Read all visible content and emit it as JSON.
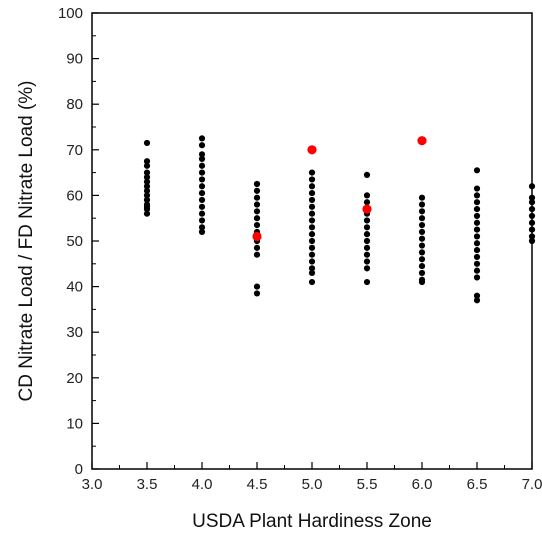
{
  "chart_data": {
    "type": "scatter",
    "title": "",
    "xlabel": "USDA Plant Hardiness Zone",
    "ylabel": "CD Nitrate Load / FD Nitrate Load (%)",
    "xlim": [
      3.0,
      7.0
    ],
    "ylim": [
      0,
      100
    ],
    "xticks": [
      "3.0",
      "3.5",
      "4.0",
      "4.5",
      "5.0",
      "5.5",
      "6.0",
      "6.5",
      "7.0"
    ],
    "yticks": [
      "0",
      "10",
      "20",
      "30",
      "40",
      "50",
      "60",
      "70",
      "80",
      "90",
      "100"
    ],
    "grid": false,
    "legend": "none",
    "series": [
      {
        "color": "#000000",
        "points": [
          {
            "x": 3.5,
            "y": 71.5
          },
          {
            "x": 3.5,
            "y": 67.5
          },
          {
            "x": 3.5,
            "y": 66.5
          },
          {
            "x": 3.5,
            "y": 65.0
          },
          {
            "x": 3.5,
            "y": 64.0
          },
          {
            "x": 3.5,
            "y": 63.0
          },
          {
            "x": 3.5,
            "y": 62.0
          },
          {
            "x": 3.5,
            "y": 61.0
          },
          {
            "x": 3.5,
            "y": 60.0
          },
          {
            "x": 3.5,
            "y": 59.0
          },
          {
            "x": 3.5,
            "y": 58.0
          },
          {
            "x": 3.5,
            "y": 57.5
          },
          {
            "x": 3.5,
            "y": 57.0
          },
          {
            "x": 3.5,
            "y": 56.0
          },
          {
            "x": 4.0,
            "y": 72.5
          },
          {
            "x": 4.0,
            "y": 71.0
          },
          {
            "x": 4.0,
            "y": 69.0
          },
          {
            "x": 4.0,
            "y": 68.0
          },
          {
            "x": 4.0,
            "y": 66.5
          },
          {
            "x": 4.0,
            "y": 65.0
          },
          {
            "x": 4.0,
            "y": 63.5
          },
          {
            "x": 4.0,
            "y": 62.0
          },
          {
            "x": 4.0,
            "y": 60.5
          },
          {
            "x": 4.0,
            "y": 59.0
          },
          {
            "x": 4.0,
            "y": 57.5
          },
          {
            "x": 4.0,
            "y": 56.0
          },
          {
            "x": 4.0,
            "y": 54.5
          },
          {
            "x": 4.0,
            "y": 53.0
          },
          {
            "x": 4.0,
            "y": 52.0
          },
          {
            "x": 4.5,
            "y": 62.5
          },
          {
            "x": 4.5,
            "y": 61.0
          },
          {
            "x": 4.5,
            "y": 59.5
          },
          {
            "x": 4.5,
            "y": 58.0
          },
          {
            "x": 4.5,
            "y": 56.5
          },
          {
            "x": 4.5,
            "y": 55.0
          },
          {
            "x": 4.5,
            "y": 53.5
          },
          {
            "x": 4.5,
            "y": 52.0
          },
          {
            "x": 4.5,
            "y": 50.0
          },
          {
            "x": 4.5,
            "y": 48.5
          },
          {
            "x": 4.5,
            "y": 47.0
          },
          {
            "x": 4.5,
            "y": 40.0
          },
          {
            "x": 4.5,
            "y": 38.5
          },
          {
            "x": 5.0,
            "y": 65.0
          },
          {
            "x": 5.0,
            "y": 63.5
          },
          {
            "x": 5.0,
            "y": 62.0
          },
          {
            "x": 5.0,
            "y": 60.5
          },
          {
            "x": 5.0,
            "y": 59.0
          },
          {
            "x": 5.0,
            "y": 57.5
          },
          {
            "x": 5.0,
            "y": 56.0
          },
          {
            "x": 5.0,
            "y": 54.5
          },
          {
            "x": 5.0,
            "y": 53.0
          },
          {
            "x": 5.0,
            "y": 51.5
          },
          {
            "x": 5.0,
            "y": 50.0
          },
          {
            "x": 5.0,
            "y": 48.5
          },
          {
            "x": 5.0,
            "y": 47.0
          },
          {
            "x": 5.0,
            "y": 45.5
          },
          {
            "x": 5.0,
            "y": 44.0
          },
          {
            "x": 5.0,
            "y": 43.0
          },
          {
            "x": 5.0,
            "y": 41.0
          },
          {
            "x": 5.5,
            "y": 64.5
          },
          {
            "x": 5.5,
            "y": 60.0
          },
          {
            "x": 5.5,
            "y": 58.5
          },
          {
            "x": 5.5,
            "y": 56.0
          },
          {
            "x": 5.5,
            "y": 54.5
          },
          {
            "x": 5.5,
            "y": 53.0
          },
          {
            "x": 5.5,
            "y": 51.5
          },
          {
            "x": 5.5,
            "y": 50.0
          },
          {
            "x": 5.5,
            "y": 48.5
          },
          {
            "x": 5.5,
            "y": 47.0
          },
          {
            "x": 5.5,
            "y": 45.5
          },
          {
            "x": 5.5,
            "y": 44.0
          },
          {
            "x": 5.5,
            "y": 41.0
          },
          {
            "x": 6.0,
            "y": 59.5
          },
          {
            "x": 6.0,
            "y": 58.0
          },
          {
            "x": 6.0,
            "y": 56.5
          },
          {
            "x": 6.0,
            "y": 55.0
          },
          {
            "x": 6.0,
            "y": 53.5
          },
          {
            "x": 6.0,
            "y": 52.0
          },
          {
            "x": 6.0,
            "y": 50.5
          },
          {
            "x": 6.0,
            "y": 49.0
          },
          {
            "x": 6.0,
            "y": 47.5
          },
          {
            "x": 6.0,
            "y": 46.0
          },
          {
            "x": 6.0,
            "y": 44.5
          },
          {
            "x": 6.0,
            "y": 43.0
          },
          {
            "x": 6.0,
            "y": 41.5
          },
          {
            "x": 6.0,
            "y": 41.0
          },
          {
            "x": 6.5,
            "y": 65.5
          },
          {
            "x": 6.5,
            "y": 61.5
          },
          {
            "x": 6.5,
            "y": 60.0
          },
          {
            "x": 6.5,
            "y": 58.5
          },
          {
            "x": 6.5,
            "y": 57.0
          },
          {
            "x": 6.5,
            "y": 55.5
          },
          {
            "x": 6.5,
            "y": 54.0
          },
          {
            "x": 6.5,
            "y": 52.5
          },
          {
            "x": 6.5,
            "y": 51.0
          },
          {
            "x": 6.5,
            "y": 49.5
          },
          {
            "x": 6.5,
            "y": 48.0
          },
          {
            "x": 6.5,
            "y": 46.5
          },
          {
            "x": 6.5,
            "y": 45.0
          },
          {
            "x": 6.5,
            "y": 43.5
          },
          {
            "x": 6.5,
            "y": 42.0
          },
          {
            "x": 6.5,
            "y": 38.0
          },
          {
            "x": 6.5,
            "y": 37.0
          },
          {
            "x": 7.0,
            "y": 62.0
          },
          {
            "x": 7.0,
            "y": 59.5
          },
          {
            "x": 7.0,
            "y": 58.5
          },
          {
            "x": 7.0,
            "y": 57.0
          },
          {
            "x": 7.0,
            "y": 55.5
          },
          {
            "x": 7.0,
            "y": 54.0
          },
          {
            "x": 7.0,
            "y": 52.5
          },
          {
            "x": 7.0,
            "y": 51.0
          },
          {
            "x": 7.0,
            "y": 50.0
          }
        ]
      },
      {
        "color": "#ff0000",
        "points": [
          {
            "x": 4.5,
            "y": 51
          },
          {
            "x": 5.0,
            "y": 70
          },
          {
            "x": 5.5,
            "y": 57
          },
          {
            "x": 6.0,
            "y": 72
          }
        ]
      }
    ]
  }
}
